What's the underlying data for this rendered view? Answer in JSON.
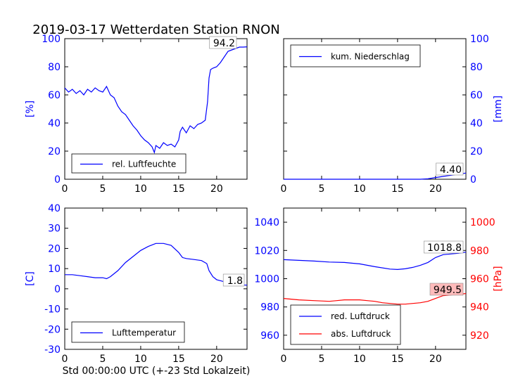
{
  "title": "2019-03-17 Wetterdaten Station RNON",
  "xlabel": "Std 00:00:00 UTC (+-23 Std Lokalzeit)",
  "colors": {
    "blue": "#0000ff",
    "red": "#ff0000",
    "label_red_bg": "#ffbbbb"
  },
  "chart_data": [
    {
      "type": "line",
      "panel": "top-left",
      "ylabel": "[%]",
      "ylabel_side": "left",
      "xlim": [
        0,
        24
      ],
      "ylim": [
        0,
        100
      ],
      "xticks": [
        0,
        5,
        10,
        15,
        20
      ],
      "yticks": [
        0,
        20,
        40,
        60,
        80,
        100
      ],
      "legend": {
        "position": "lower-left"
      },
      "series": [
        {
          "name": "rel. Luftfeuchte",
          "color": "#0000ff",
          "end_label": "94.2",
          "x": [
            0,
            0.5,
            1,
            1.5,
            2,
            2.5,
            3,
            3.5,
            4,
            4.5,
            5,
            5.5,
            6,
            6.5,
            7,
            7.5,
            8,
            8.5,
            9,
            9.5,
            10,
            10.5,
            11,
            11.5,
            11.8,
            12,
            12.5,
            13,
            13.5,
            14,
            14.5,
            15,
            15.2,
            15.5,
            16,
            16.5,
            17,
            17.5,
            18,
            18.5,
            18.8,
            19,
            19.2,
            19.5,
            20,
            20.5,
            21,
            21.5,
            22,
            22.5,
            23,
            23.5,
            24
          ],
          "y": [
            65,
            62,
            64,
            61,
            63,
            60,
            64,
            62,
            65,
            63,
            62,
            66,
            60,
            58,
            52,
            48,
            46,
            42,
            38,
            35,
            31,
            28,
            26,
            23,
            19,
            24,
            22,
            26,
            24,
            25,
            23,
            28,
            34,
            37,
            33,
            38,
            36,
            39,
            40,
            42,
            55,
            72,
            78,
            79,
            80,
            83,
            87,
            91,
            92,
            93,
            94,
            94,
            94.2
          ]
        }
      ]
    },
    {
      "type": "line",
      "panel": "top-right",
      "ylabel": "[mm]",
      "ylabel_side": "right",
      "xlim": [
        0,
        24
      ],
      "ylim": [
        0,
        100
      ],
      "xticks": [
        0,
        5,
        10,
        15,
        20
      ],
      "yticks": [
        0,
        20,
        40,
        60,
        80,
        100
      ],
      "legend": {
        "position": "upper-left"
      },
      "series": [
        {
          "name": "kum. Niederschlag",
          "color": "#0000ff",
          "end_label": "4.40",
          "x": [
            0,
            5,
            10,
            15,
            18,
            19,
            20,
            21,
            22,
            23,
            24
          ],
          "y": [
            0,
            0,
            0,
            0,
            0,
            0.3,
            1.2,
            2.0,
            2.8,
            3.6,
            4.4
          ]
        }
      ]
    },
    {
      "type": "line",
      "panel": "bottom-left",
      "ylabel": "[C]",
      "ylabel_side": "left",
      "xlim": [
        0,
        24
      ],
      "ylim": [
        -30,
        40
      ],
      "xticks": [
        0,
        5,
        10,
        15,
        20
      ],
      "yticks": [
        -30,
        -20,
        -10,
        0,
        10,
        20,
        30,
        40
      ],
      "legend": {
        "position": "lower-left"
      },
      "series": [
        {
          "name": "Lufttemperatur",
          "color": "#0000ff",
          "end_label": "1.8",
          "x": [
            0,
            1,
            2,
            3,
            4,
            5,
            5.5,
            6,
            7,
            8,
            9,
            10,
            11,
            12,
            13,
            14,
            15,
            15.5,
            16,
            17,
            18,
            18.7,
            19,
            19.5,
            20,
            21,
            22,
            23,
            24
          ],
          "y": [
            7,
            7,
            6.5,
            6,
            5.5,
            5.5,
            5,
            6,
            9,
            13,
            16,
            19,
            21,
            22.5,
            22.5,
            21.5,
            18,
            15.5,
            15,
            14.5,
            14,
            12.5,
            9,
            6,
            4.5,
            3.5,
            2.5,
            2,
            1.8
          ]
        }
      ]
    },
    {
      "type": "line",
      "panel": "bottom-right",
      "ylabel": "[hPa]",
      "ylabel_side": "right",
      "xlim": [
        0,
        24
      ],
      "ylim_left": [
        950,
        1050
      ],
      "ylim_right": [
        910,
        1010
      ],
      "xticks": [
        0,
        5,
        10,
        15,
        20
      ],
      "yticks_left": [
        960,
        980,
        1000,
        1020,
        1040
      ],
      "yticks_right": [
        920,
        940,
        960,
        980,
        1000
      ],
      "legend": {
        "position": "lower-left"
      },
      "series": [
        {
          "name": "red. Luftdruck",
          "color": "#0000ff",
          "axis": "left",
          "end_label": "1018.8",
          "x": [
            0,
            2,
            4,
            6,
            8,
            10,
            12,
            14,
            15,
            16,
            17,
            18,
            19,
            20,
            21,
            22,
            23,
            24
          ],
          "y": [
            1013.5,
            1013,
            1012.5,
            1011.8,
            1011.5,
            1010.5,
            1008.5,
            1006.8,
            1006.5,
            1007,
            1008,
            1009.5,
            1011.5,
            1015,
            1017,
            1017.5,
            1018,
            1018.8
          ]
        },
        {
          "name": "abs. Luftdruck",
          "color": "#ff0000",
          "axis": "right",
          "end_label": "949.5",
          "x": [
            0,
            2,
            4,
            6,
            7,
            8,
            9,
            10,
            11,
            12,
            13,
            14,
            15,
            16,
            17,
            18,
            19,
            20,
            21,
            22,
            23,
            24
          ],
          "y": [
            946,
            945,
            944.5,
            944,
            944.5,
            945,
            945,
            945,
            944.5,
            944,
            943,
            942.5,
            942,
            942,
            942.5,
            943,
            944,
            946,
            948,
            948.5,
            949,
            949.5
          ]
        }
      ]
    }
  ]
}
